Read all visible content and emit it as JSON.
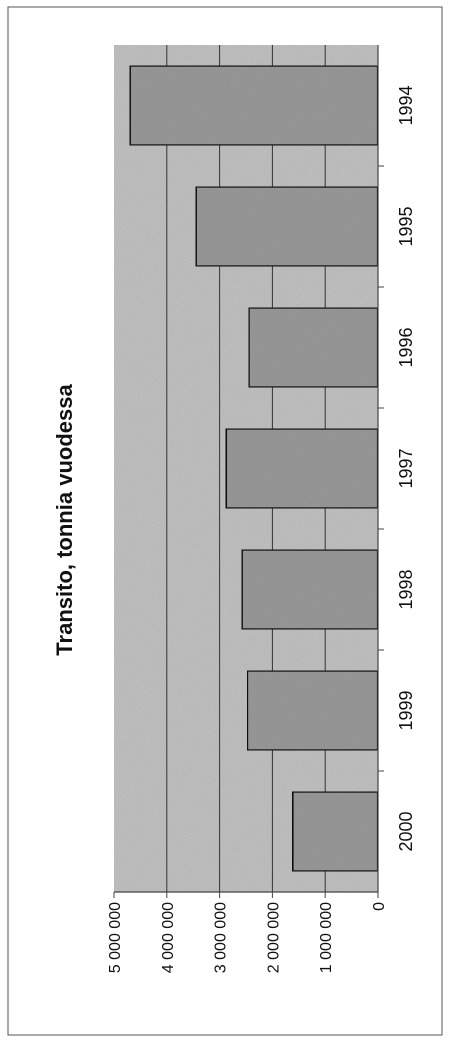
{
  "chart_data": {
    "type": "bar",
    "orientation": "rotated-90-ccw",
    "title": "Transito, tonnia vuodessa",
    "xlabel": "",
    "ylabel": "",
    "categories": [
      "1994",
      "1995",
      "1996",
      "1997",
      "1998",
      "1999",
      "2000"
    ],
    "series": [
      {
        "values": [
          4700000,
          3450000,
          2450000,
          2880000,
          2580000,
          2480000,
          1620000
        ]
      }
    ],
    "ylim": [
      0,
      5000000
    ],
    "yticks": [
      "0",
      "1 000 000",
      "2 000 000",
      "3 000 000",
      "4 000 000",
      "5 000 000"
    ],
    "grid": true,
    "legend": "none",
    "colors": {
      "plot_background": "#c2c2c2",
      "bar_fill": "#9a9a9a",
      "bar_stroke": "#111111",
      "gridline": "#333333",
      "frame": "#444444"
    }
  }
}
